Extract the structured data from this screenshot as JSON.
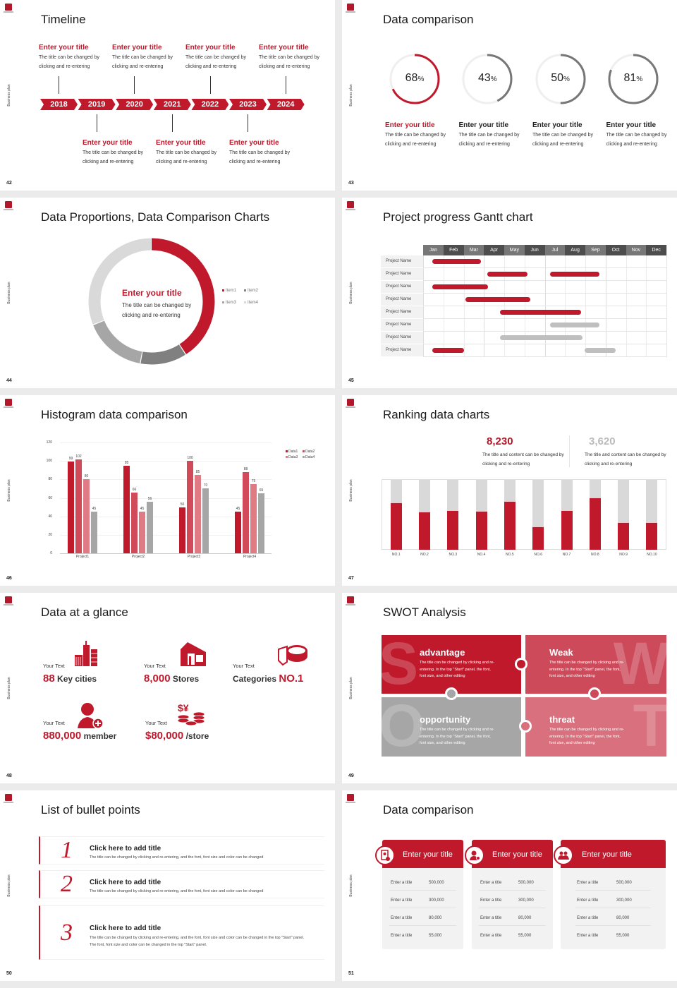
{
  "sidebar_label": "Business plan",
  "colors": {
    "accent": "#c0192c",
    "data2": "#d04a5a",
    "data3": "#e07a85",
    "gray": "#a6a6a6",
    "dark_gray": "#777777",
    "light_gray": "#d9d9d9"
  },
  "timeline": {
    "page": "42",
    "title": "Timeline",
    "years": [
      "2018",
      "2019",
      "2020",
      "2021",
      "2022",
      "2023",
      "2024"
    ],
    "items": [
      {
        "title": "Enter your title",
        "desc": "The title can be changed by clicking and re-entering"
      },
      {
        "title": "Enter your title",
        "desc": "The title can be changed by clicking and re-entering"
      },
      {
        "title": "Enter your title",
        "desc": "The title can be changed by clicking and re-entering"
      },
      {
        "title": "Enter your title",
        "desc": "The title can be changed by clicking and re-entering"
      },
      {
        "title": "Enter your title",
        "desc": "The title can be changed by clicking and re-entering"
      },
      {
        "title": "Enter your title",
        "desc": "The title can be changed by clicking and re-entering"
      },
      {
        "title": "Enter your title",
        "desc": "The title can be changed by clicking and re-entering"
      }
    ]
  },
  "rings": {
    "page": "43",
    "title": "Data comparison",
    "items": [
      {
        "value": "68",
        "percent": 68,
        "unit": "%",
        "title": "Enter your title",
        "desc": "The title can be changed by clicking and re-entering",
        "color": "#c0192c"
      },
      {
        "value": "43",
        "percent": 43,
        "unit": "%",
        "title": "Enter your title",
        "desc": "The title can be changed by clicking and re-entering",
        "color": "#777777"
      },
      {
        "value": "50",
        "percent": 50,
        "unit": "%",
        "title": "Enter your title",
        "desc": "The title can be changed by clicking and re-entering",
        "color": "#777777"
      },
      {
        "value": "81",
        "percent": 81,
        "unit": "%",
        "title": "Enter your title",
        "desc": "The title can be changed by clicking and re-entering",
        "color": "#777777"
      }
    ]
  },
  "donut": {
    "page": "44",
    "title": "Data Proportions, Data Comparison Charts",
    "center_title": "Enter your title",
    "center_desc": "The title can be changed by clicking and re-entering",
    "chart_data": {
      "type": "pie",
      "categories": [
        "Item1",
        "Item2",
        "Item3",
        "Item4"
      ],
      "values": [
        41,
        12,
        16,
        31
      ],
      "colors": [
        "#c0192c",
        "#808080",
        "#a6a6a6",
        "#d9d9d9"
      ],
      "legend": "right"
    }
  },
  "gantt": {
    "page": "45",
    "title": "Project progress Gantt chart",
    "months": [
      "Jan",
      "Feb",
      "Mar",
      "Apr",
      "May",
      "Jun",
      "Jul",
      "Aug",
      "Sep",
      "Oct",
      "Nov",
      "Dec"
    ],
    "rows": [
      {
        "label": "Project Name",
        "bars": [
          {
            "start": 0.45,
            "end": 2.85,
            "color": "#c0192c"
          }
        ]
      },
      {
        "label": "Project Name",
        "bars": [
          {
            "start": 3.15,
            "end": 5.15,
            "color": "#c0192c"
          },
          {
            "start": 6.25,
            "end": 8.7,
            "color": "#c0192c"
          }
        ]
      },
      {
        "label": "Project Name",
        "bars": [
          {
            "start": 0.45,
            "end": 3.2,
            "color": "#c0192c"
          }
        ]
      },
      {
        "label": "Project Name",
        "bars": [
          {
            "start": 2.1,
            "end": 5.3,
            "color": "#c0192c"
          }
        ]
      },
      {
        "label": "Project Name",
        "bars": [
          {
            "start": 3.8,
            "end": 7.8,
            "color": "#c0192c"
          }
        ]
      },
      {
        "label": "Project Name",
        "bars": [
          {
            "start": 6.25,
            "end": 8.7,
            "color": "#bfbfbf"
          }
        ]
      },
      {
        "label": "Project Name",
        "bars": [
          {
            "start": 3.8,
            "end": 7.85,
            "color": "#bfbfbf"
          }
        ]
      },
      {
        "label": "Project Name",
        "bars": [
          {
            "start": 0.45,
            "end": 2.0,
            "color": "#c0192c"
          },
          {
            "start": 7.95,
            "end": 9.5,
            "color": "#bfbfbf"
          }
        ]
      }
    ]
  },
  "histogram": {
    "page": "46",
    "title": "Histogram data comparison",
    "chart_data": {
      "type": "bar",
      "categories": [
        "Project1",
        "Project2",
        "Project3",
        "Project4"
      ],
      "series": [
        {
          "name": "Data1",
          "values": [
            99,
            95,
            50,
            45
          ],
          "color": "#c0192c"
        },
        {
          "name": "Data2",
          "values": [
            102,
            66,
            100,
            88
          ],
          "color": "#d04a5a"
        },
        {
          "name": "Data3",
          "values": [
            80,
            45,
            85,
            75
          ],
          "color": "#e07a85"
        },
        {
          "name": "Data4",
          "values": [
            45,
            56,
            70,
            65
          ],
          "color": "#a6a6a6"
        }
      ],
      "ylim": [
        0,
        120
      ],
      "yticks": [
        "0",
        "20",
        "40",
        "60",
        "80",
        "100",
        "120"
      ],
      "grid": true,
      "legend": "top-right"
    }
  },
  "ranking": {
    "page": "47",
    "title": "Ranking data charts",
    "stats": [
      {
        "value": "8,230",
        "desc": "The title and content can be changed by clicking and re-entering",
        "color": "#b3182a"
      },
      {
        "value": "3,620",
        "desc": "The title and content can be changed by clicking and re-entering",
        "color": "#bbbbbb"
      }
    ],
    "chart_data": {
      "type": "bar",
      "categories": [
        "NO.1",
        "NO.2",
        "NO.3",
        "NO.4",
        "NO.5",
        "NO.6",
        "NO.7",
        "NO.8",
        "NO.9",
        "NO.10"
      ],
      "values": [
        0.68,
        0.55,
        0.57,
        0.56,
        0.7,
        0.33,
        0.57,
        0.75,
        0.39,
        0.39
      ],
      "ylim": [
        0,
        1
      ]
    }
  },
  "glance": {
    "page": "48",
    "title": "Data at a glance",
    "items": [
      {
        "label": "Your Text",
        "pre": "",
        "value": "88",
        "suffix": " Key cities",
        "icon": "city-buildings-icon"
      },
      {
        "label": "Your Text",
        "pre": "",
        "value": "8,000",
        "suffix": " Stores",
        "icon": "store-icon"
      },
      {
        "label": "Your Text",
        "pre": "Categories ",
        "value": "NO.1",
        "suffix": "",
        "icon": "pie-chart-icon"
      },
      {
        "label": "Your Text",
        "pre": "",
        "value": "880,000",
        "suffix": " member",
        "icon": "add-member-icon"
      },
      {
        "label": "Your Text",
        "pre": "",
        "value": "$80,000",
        "suffix": " /store",
        "icon": "coins-icon"
      }
    ]
  },
  "swot": {
    "page": "49",
    "title": "SWOT Analysis",
    "items": [
      {
        "letter": "S",
        "title": "advantage",
        "desc": "The title can be changed by clicking and re-entering. In the top \"Start\" panel, the font, font size, and other editing",
        "color": "#c0192c"
      },
      {
        "letter": "W",
        "title": "Weak",
        "desc": "The title can be changed by clicking and re-entering. In the top \"Start\" panel, the font, font size, and other editing",
        "color": "#cc4a5a"
      },
      {
        "letter": "O",
        "title": "opportunity",
        "desc": "The title can be changed by clicking and re-entering. In the top \"Start\" panel, the font, font size, and other editing",
        "color": "#a6a6a6"
      },
      {
        "letter": "T",
        "title": "threat",
        "desc": "The title can be changed by clicking and re-entering. In the top \"Start\" panel, the font, font size, and other editing",
        "color": "#d9707e"
      }
    ]
  },
  "bullets": {
    "page": "50",
    "title": "List of bullet points",
    "items": [
      {
        "num": "1",
        "title": "Click here to add title",
        "desc": "The title can be changed by clicking and re-entering, and the font, font size and color can be changed"
      },
      {
        "num": "2",
        "title": "Click here to add title",
        "desc": "The title can be changed by clicking and re-entering, and the font, font size and color can be changed"
      },
      {
        "num": "3",
        "title": "Click here to add title",
        "desc": "The title can be changed by clicking and re-entering, and the font, font size and color can be changed in the top \"Start\" panel. The font, font size and color can be changed in the top \"Start\" panel."
      }
    ]
  },
  "cards": {
    "page": "51",
    "title": "Data comparison",
    "items": [
      {
        "title": "Enter your title",
        "icon": "tablet-user-icon",
        "rows": [
          {
            "label": "Enter a title",
            "value": "500,000"
          },
          {
            "label": "Enter a title",
            "value": "300,000"
          },
          {
            "label": "Enter a title",
            "value": "80,000"
          },
          {
            "label": "Enter a title",
            "value": "55,000"
          }
        ]
      },
      {
        "title": "Enter your title",
        "icon": "user-add-icon",
        "rows": [
          {
            "label": "Enter a title",
            "value": "500,000"
          },
          {
            "label": "Enter a title",
            "value": "300,000"
          },
          {
            "label": "Enter a title",
            "value": "80,000"
          },
          {
            "label": "Enter a title",
            "value": "55,000"
          }
        ]
      },
      {
        "title": "Enter your title",
        "icon": "group-icon",
        "rows": [
          {
            "label": "Enter a title",
            "value": "500,000"
          },
          {
            "label": "Enter a title",
            "value": "300,000"
          },
          {
            "label": "Enter a title",
            "value": "80,000"
          },
          {
            "label": "Enter a title",
            "value": "55,000"
          }
        ]
      }
    ]
  }
}
